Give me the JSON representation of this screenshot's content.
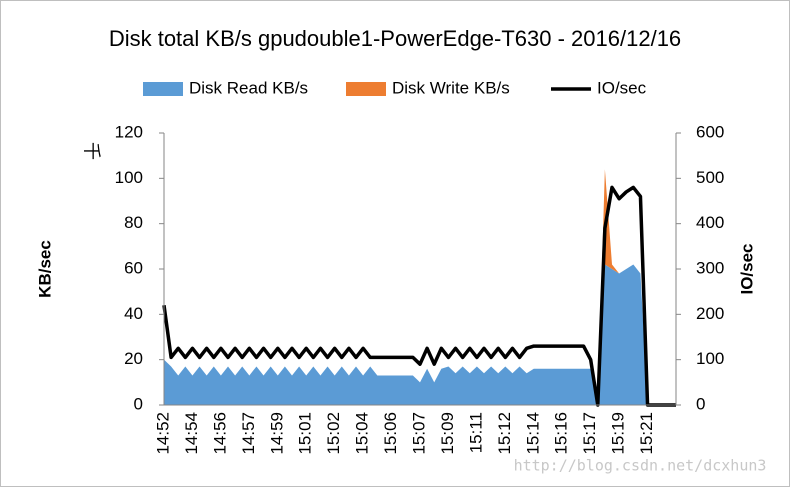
{
  "chart_data": {
    "type": "combo",
    "title": "Disk total KB/s gpudouble1-PowerEdge-T630 - 2016/12/16",
    "y_unit_label": "千",
    "ylabel": "KB/sec",
    "y2label": "IO/sec",
    "watermark": "http://blog.csdn.net/dcxhun3",
    "categories": [
      "14:52",
      null,
      null,
      null,
      "14:54",
      null,
      null,
      null,
      "14:56",
      null,
      null,
      null,
      "14:57",
      null,
      null,
      null,
      "14:59",
      null,
      null,
      null,
      "15:01",
      null,
      null,
      null,
      "15:02",
      null,
      null,
      null,
      "15:04",
      null,
      null,
      null,
      "15:06",
      null,
      null,
      null,
      "15:07",
      null,
      null,
      null,
      "15:09",
      null,
      null,
      null,
      "15:11",
      null,
      null,
      null,
      "15:12",
      null,
      null,
      null,
      "15:14",
      null,
      null,
      null,
      "15:16",
      null,
      null,
      null,
      "15:17",
      null,
      null,
      null,
      "15:19",
      null,
      null,
      null,
      "15:21",
      null,
      null,
      null,
      null
    ],
    "series": [
      {
        "name": "Disk Read KB/s",
        "type": "area",
        "color": "#5b9bd5",
        "values": [
          20,
          17,
          13,
          17,
          13,
          17,
          13,
          17,
          13,
          17,
          13,
          17,
          13,
          17,
          13,
          17,
          13,
          17,
          13,
          17,
          13,
          17,
          13,
          17,
          13,
          17,
          13,
          17,
          13,
          17,
          13,
          13,
          13,
          13,
          13,
          13,
          10,
          16,
          10,
          16,
          17,
          14,
          17,
          14,
          17,
          14,
          17,
          14,
          17,
          14,
          17,
          14,
          16,
          16,
          16,
          16,
          16,
          16,
          16,
          16,
          16,
          0,
          62,
          60,
          58,
          60,
          62,
          58,
          0,
          0,
          0,
          0,
          0
        ]
      },
      {
        "name": "Disk Write KB/s",
        "type": "area",
        "color": "#ed7d31",
        "values": [
          0,
          0,
          0,
          0,
          0,
          0,
          0,
          0,
          0,
          0,
          0,
          0,
          0,
          0,
          0,
          0,
          0,
          0,
          0,
          0,
          0,
          0,
          0,
          0,
          0,
          0,
          0,
          0,
          0,
          0,
          0,
          0,
          0,
          0,
          0,
          0,
          0,
          0,
          0,
          0,
          0,
          0,
          0,
          0,
          0,
          0,
          0,
          0,
          0,
          0,
          0,
          0,
          0,
          0,
          0,
          0,
          0,
          0,
          0,
          0,
          0,
          0,
          42,
          2,
          0,
          0,
          0,
          0,
          0,
          0,
          0,
          0,
          0
        ]
      },
      {
        "name": "IO/sec",
        "type": "line",
        "axis": "y2",
        "color": "#000000",
        "values": [
          220,
          105,
          125,
          105,
          125,
          105,
          125,
          105,
          125,
          105,
          125,
          105,
          125,
          105,
          125,
          105,
          125,
          105,
          125,
          105,
          125,
          105,
          125,
          105,
          125,
          105,
          125,
          105,
          125,
          105,
          105,
          105,
          105,
          105,
          105,
          105,
          90,
          125,
          90,
          125,
          105,
          125,
          105,
          125,
          105,
          125,
          105,
          125,
          105,
          125,
          105,
          125,
          130,
          130,
          130,
          130,
          130,
          130,
          130,
          130,
          100,
          0,
          390,
          480,
          455,
          470,
          480,
          460,
          0,
          0,
          0,
          0,
          0
        ]
      }
    ],
    "ylim": [
      0,
      120
    ],
    "yticks": [
      0,
      20,
      40,
      60,
      80,
      100,
      120
    ],
    "y2lim": [
      0,
      600
    ],
    "y2ticks": [
      0,
      100,
      200,
      300,
      400,
      500,
      600
    ],
    "legend": "top"
  }
}
